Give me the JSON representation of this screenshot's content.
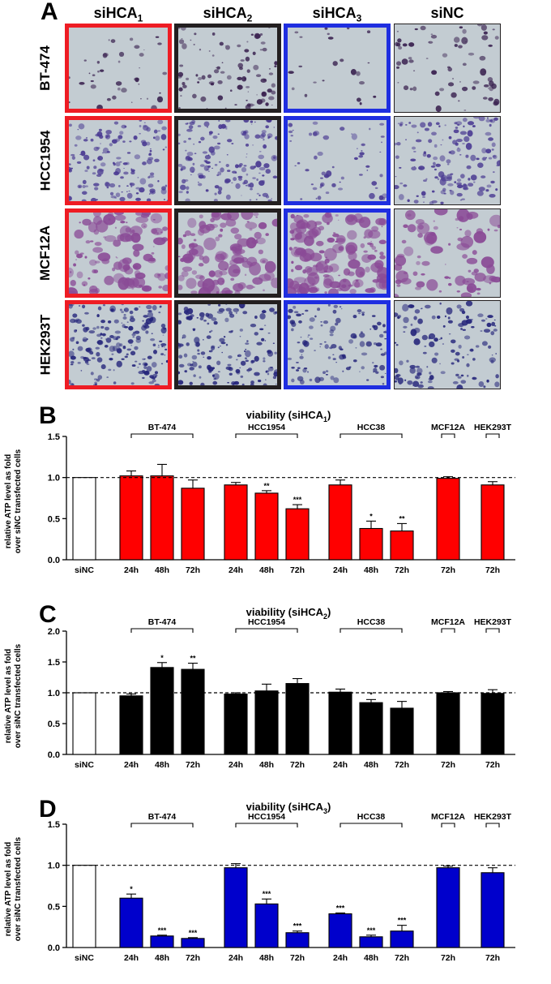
{
  "panel_a": {
    "label": "A",
    "columns": [
      {
        "base": "siHCA",
        "sub": "1",
        "frame_color": "#ee1c24"
      },
      {
        "base": "siHCA",
        "sub": "2",
        "frame_color": "#231f20"
      },
      {
        "base": "siHCA",
        "sub": "3",
        "frame_color": "#1f2ee0"
      },
      {
        "base": "siNC",
        "sub": "",
        "frame_color": "#231f20"
      }
    ],
    "rows": [
      "BT-474",
      "HCC1954",
      "MCF12A",
      "HEK293T"
    ],
    "background_color": "#c3ccd2",
    "row_stain_colors": [
      "#3a2250",
      "#4a3a92",
      "#8a4a96",
      "#24247a"
    ]
  },
  "chart_data": [
    {
      "panel": "B",
      "type": "bar",
      "title_base": "viability (siHCA",
      "title_sub": "1",
      "title_end": ")",
      "ylabel": [
        "relative ATP level as fold",
        "over siNC transfected cells"
      ],
      "ylim": [
        0,
        1.5
      ],
      "yticks": [
        "0.0",
        "0.5",
        "1.0",
        "1.5"
      ],
      "reference_line": 1.0,
      "bar_color": "#ff0000",
      "groups": [
        {
          "name": "",
          "bars": [
            {
              "label": "siNC",
              "value": 1.0,
              "err": 0,
              "sig": "",
              "control": true
            }
          ]
        },
        {
          "name": "BT-474",
          "bars": [
            {
              "label": "24h",
              "value": 1.02,
              "err": 0.06,
              "sig": ""
            },
            {
              "label": "48h",
              "value": 1.02,
              "err": 0.14,
              "sig": ""
            },
            {
              "label": "72h",
              "value": 0.87,
              "err": 0.1,
              "sig": ""
            }
          ]
        },
        {
          "name": "HCC1954",
          "bars": [
            {
              "label": "24h",
              "value": 0.91,
              "err": 0.03,
              "sig": ""
            },
            {
              "label": "48h",
              "value": 0.81,
              "err": 0.03,
              "sig": "**"
            },
            {
              "label": "72h",
              "value": 0.62,
              "err": 0.05,
              "sig": "***"
            }
          ]
        },
        {
          "name": "HCC38",
          "bars": [
            {
              "label": "24h",
              "value": 0.91,
              "err": 0.06,
              "sig": ""
            },
            {
              "label": "48h",
              "value": 0.38,
              "err": 0.09,
              "sig": "*"
            },
            {
              "label": "72h",
              "value": 0.35,
              "err": 0.09,
              "sig": "**"
            }
          ]
        },
        {
          "name": "MCF12A",
          "bars": [
            {
              "label": "72h",
              "value": 0.99,
              "err": 0.02,
              "sig": ""
            }
          ]
        },
        {
          "name": "HEK293T",
          "bars": [
            {
              "label": "72h",
              "value": 0.91,
              "err": 0.04,
              "sig": ""
            }
          ]
        }
      ]
    },
    {
      "panel": "C",
      "type": "bar",
      "title_base": "viability (siHCA",
      "title_sub": "2",
      "title_end": ")",
      "ylabel": [
        "relative ATP level as fold",
        "over siNC transfected cells"
      ],
      "ylim": [
        0,
        2.0
      ],
      "yticks": [
        "0.0",
        "0.5",
        "1.0",
        "1.5",
        "2.0"
      ],
      "reference_line": 1.0,
      "bar_color": "#000000",
      "groups": [
        {
          "name": "",
          "bars": [
            {
              "label": "siNC",
              "value": 1.0,
              "err": 0,
              "sig": "",
              "control": true
            }
          ]
        },
        {
          "name": "BT-474",
          "bars": [
            {
              "label": "24h",
              "value": 0.95,
              "err": 0.03,
              "sig": ""
            },
            {
              "label": "48h",
              "value": 1.41,
              "err": 0.08,
              "sig": "*"
            },
            {
              "label": "72h",
              "value": 1.38,
              "err": 0.1,
              "sig": "**"
            }
          ]
        },
        {
          "name": "HCC1954",
          "bars": [
            {
              "label": "24h",
              "value": 0.98,
              "err": 0.02,
              "sig": ""
            },
            {
              "label": "48h",
              "value": 1.03,
              "err": 0.11,
              "sig": ""
            },
            {
              "label": "72h",
              "value": 1.15,
              "err": 0.08,
              "sig": ""
            }
          ]
        },
        {
          "name": "HCC38",
          "bars": [
            {
              "label": "24h",
              "value": 1.01,
              "err": 0.05,
              "sig": ""
            },
            {
              "label": "48h",
              "value": 0.84,
              "err": 0.05,
              "sig": "*"
            },
            {
              "label": "72h",
              "value": 0.75,
              "err": 0.11,
              "sig": ""
            }
          ]
        },
        {
          "name": "MCF12A",
          "bars": [
            {
              "label": "72h",
              "value": 1.0,
              "err": 0.02,
              "sig": ""
            }
          ]
        },
        {
          "name": "HEK293T",
          "bars": [
            {
              "label": "72h",
              "value": 0.99,
              "err": 0.06,
              "sig": ""
            }
          ]
        }
      ]
    },
    {
      "panel": "D",
      "type": "bar",
      "title_base": "viability (siHCA",
      "title_sub": "3",
      "title_end": ")",
      "ylabel": [
        "relative ATP level as fold",
        "over siNC transfected cells"
      ],
      "ylim": [
        0,
        1.5
      ],
      "yticks": [
        "0.0",
        "0.5",
        "1.0",
        "1.5"
      ],
      "reference_line": 1.0,
      "bar_color": "#0000cc",
      "groups": [
        {
          "name": "",
          "bars": [
            {
              "label": "siNC",
              "value": 1.0,
              "err": 0,
              "sig": "",
              "control": true
            }
          ]
        },
        {
          "name": "BT-474",
          "bars": [
            {
              "label": "24h",
              "value": 0.6,
              "err": 0.05,
              "sig": "*"
            },
            {
              "label": "48h",
              "value": 0.14,
              "err": 0.01,
              "sig": "***"
            },
            {
              "label": "72h",
              "value": 0.11,
              "err": 0.01,
              "sig": "***"
            }
          ]
        },
        {
          "name": "HCC1954",
          "bars": [
            {
              "label": "24h",
              "value": 0.97,
              "err": 0.05,
              "sig": ""
            },
            {
              "label": "48h",
              "value": 0.53,
              "err": 0.06,
              "sig": "***"
            },
            {
              "label": "72h",
              "value": 0.18,
              "err": 0.02,
              "sig": "***"
            }
          ]
        },
        {
          "name": "HCC38",
          "bars": [
            {
              "label": "24h",
              "value": 0.41,
              "err": 0.01,
              "sig": "***"
            },
            {
              "label": "48h",
              "value": 0.13,
              "err": 0.02,
              "sig": "***"
            },
            {
              "label": "72h",
              "value": 0.2,
              "err": 0.07,
              "sig": "***"
            }
          ]
        },
        {
          "name": "MCF12A",
          "bars": [
            {
              "label": "72h",
              "value": 0.97,
              "err": 0.02,
              "sig": ""
            }
          ]
        },
        {
          "name": "HEK293T",
          "bars": [
            {
              "label": "72h",
              "value": 0.91,
              "err": 0.06,
              "sig": ""
            }
          ]
        }
      ]
    }
  ]
}
